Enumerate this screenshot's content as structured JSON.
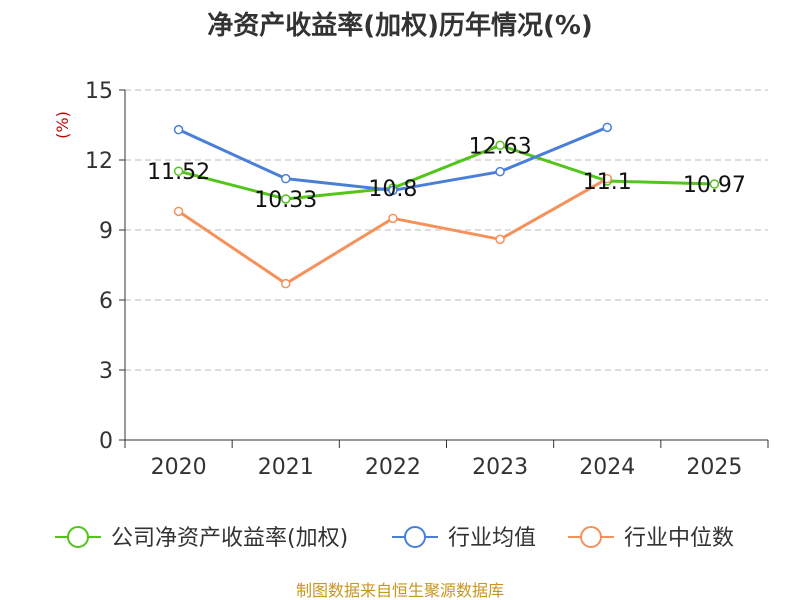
{
  "chart_data": {
    "type": "line",
    "title": "净资产收益率(加权)历年情况(%)",
    "ylabel": "(%)",
    "xlabel": "",
    "categories": [
      "2020",
      "2021",
      "2022",
      "2023",
      "2024",
      "2025"
    ],
    "ylim": [
      0,
      15
    ],
    "yticks": [
      0,
      3,
      6,
      9,
      12,
      15
    ],
    "grid": true,
    "legend_position": "bottom",
    "series": [
      {
        "name": "公司净资产收益率(加权)",
        "color": "#52c41a",
        "values": [
          11.52,
          10.33,
          10.8,
          12.63,
          11.1,
          10.97
        ],
        "labels": [
          "11.52",
          "10.33",
          "10.8",
          "12.63",
          "11.1",
          "10.97"
        ]
      },
      {
        "name": "行业均值",
        "color": "#4a7fd8",
        "values": [
          13.3,
          11.2,
          10.7,
          11.5,
          13.4,
          null
        ]
      },
      {
        "name": "行业中位数",
        "color": "#f5915a",
        "values": [
          9.8,
          6.7,
          9.5,
          8.6,
          11.2,
          null
        ]
      }
    ],
    "source": "制图数据来自恒生聚源数据库"
  }
}
